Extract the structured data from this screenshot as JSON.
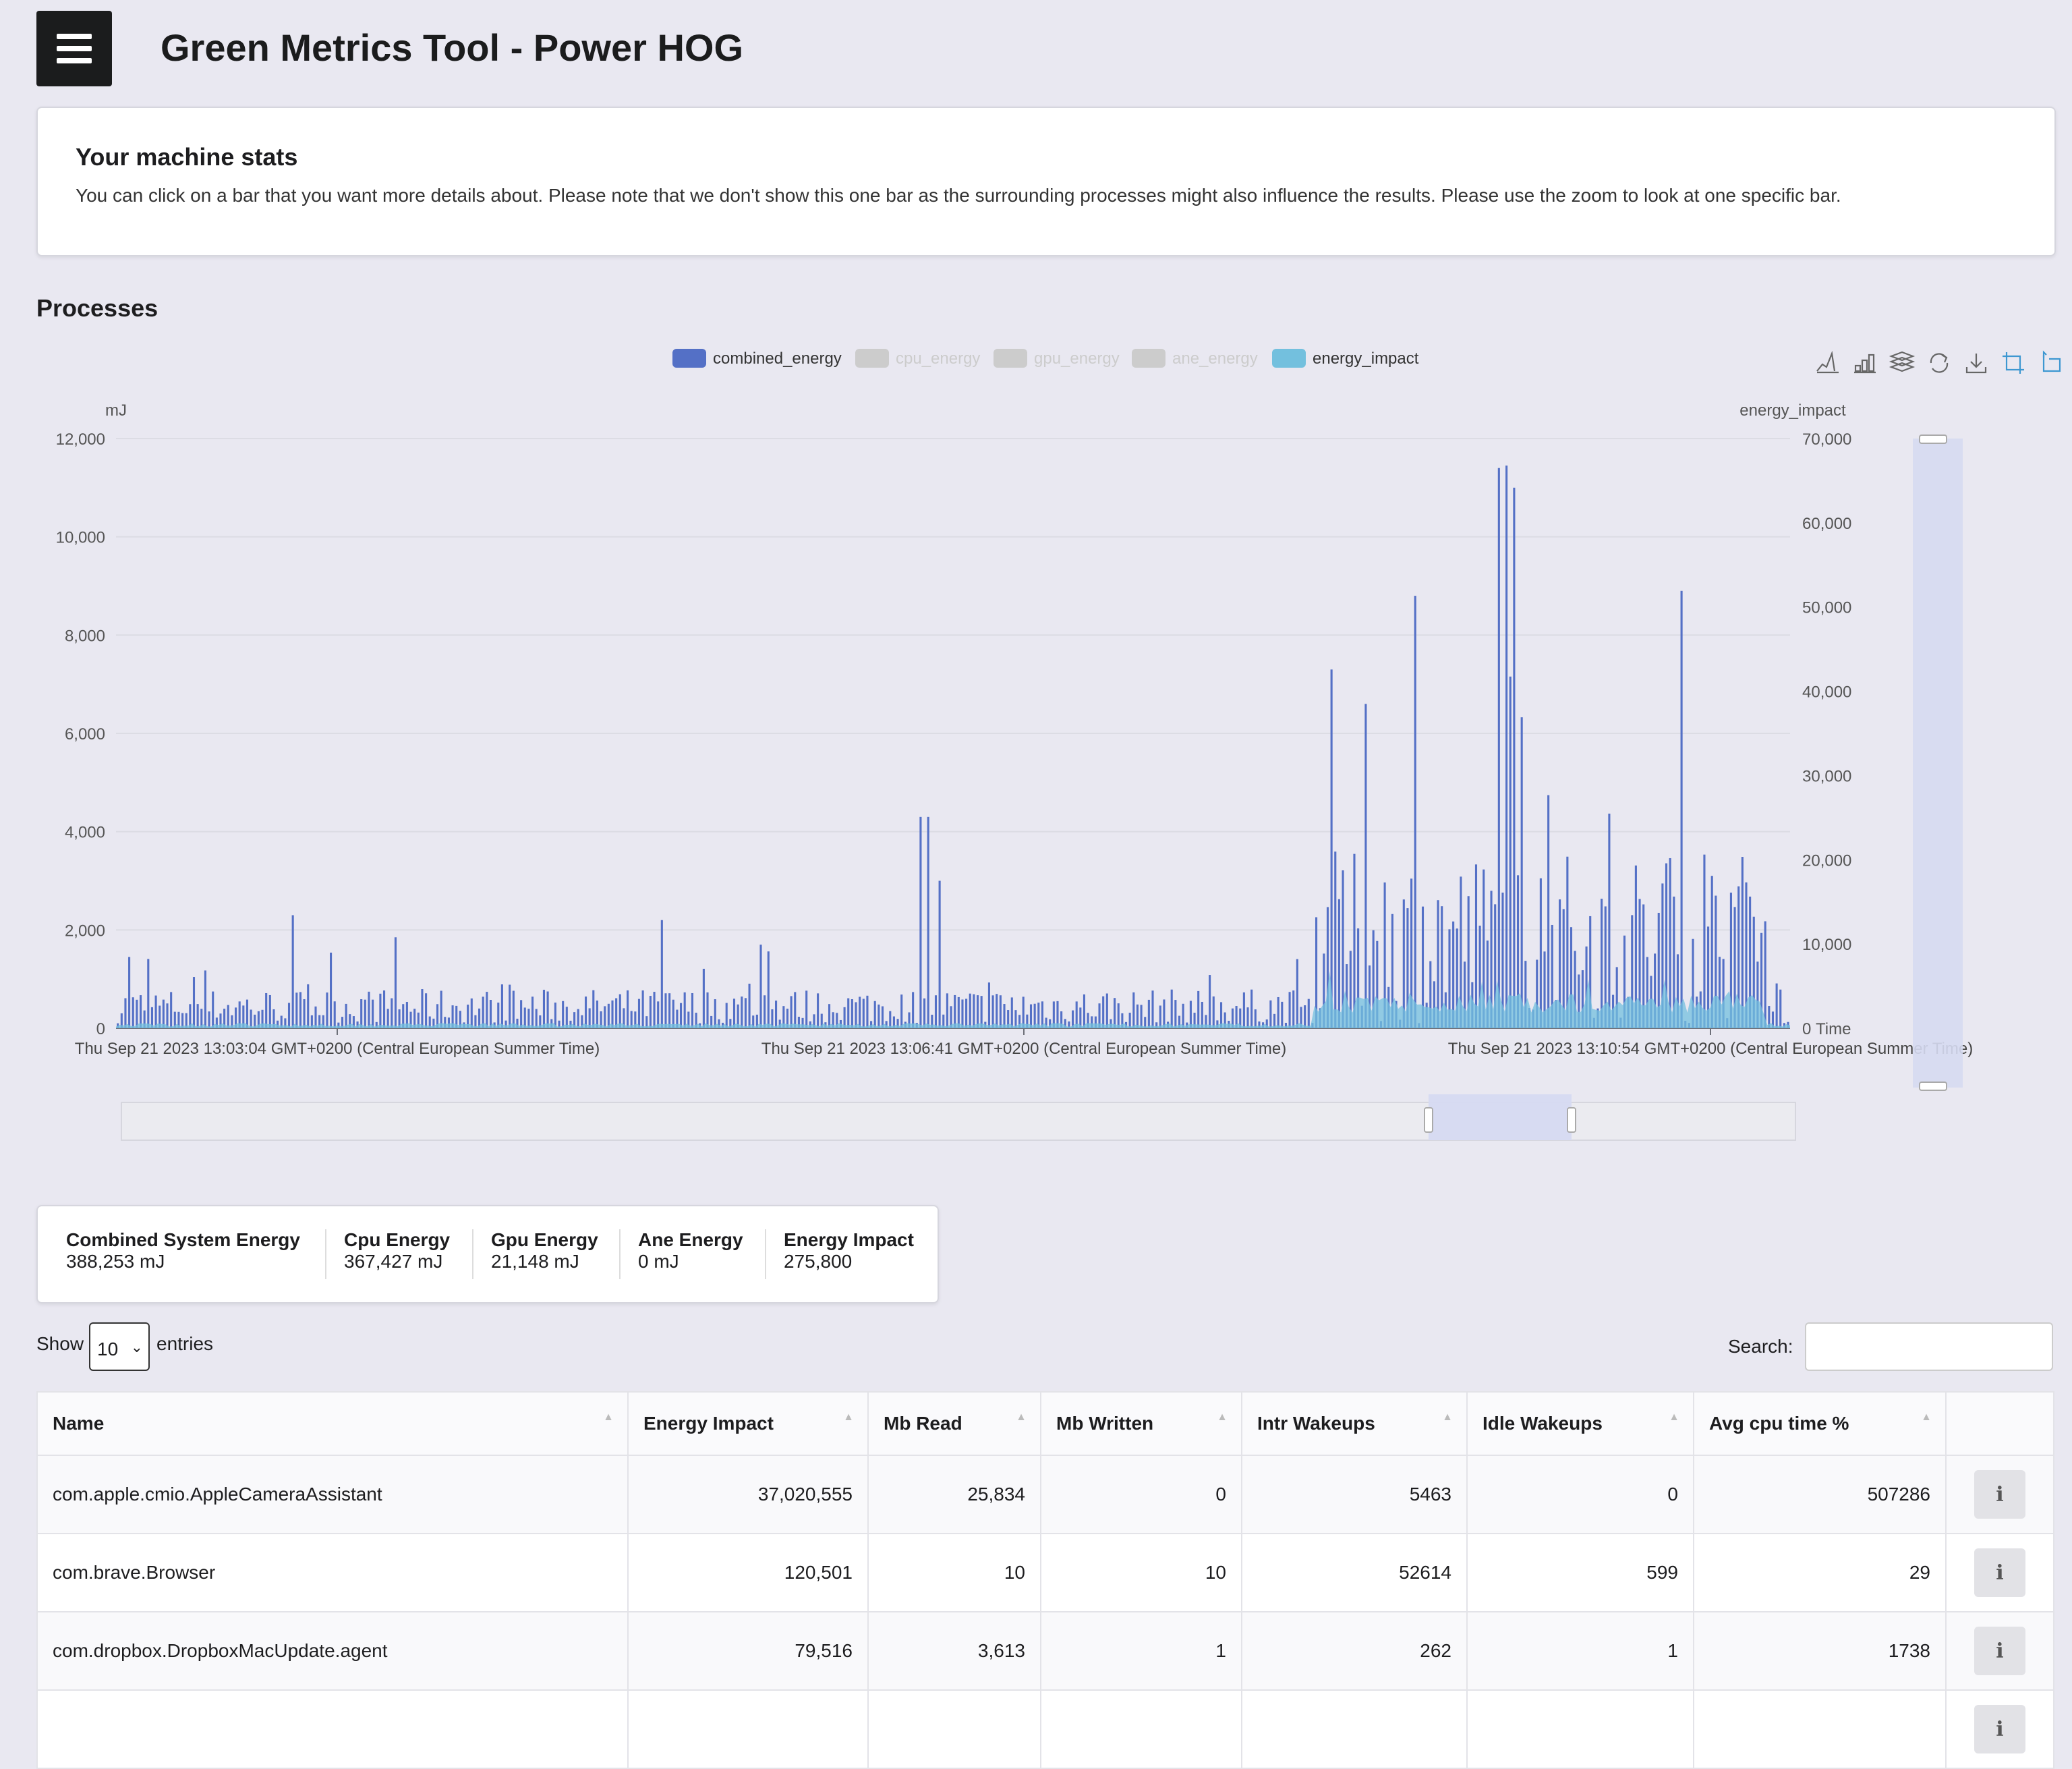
{
  "header": {
    "title": "Green Metrics Tool - Power HOG"
  },
  "stats": {
    "title": "Your machine stats",
    "text": "You can click on a bar that you want more details about. Please note that we don't show this one bar as the surrounding processes might also influence the results. Please use the zoom to look at one specific bar."
  },
  "processes": {
    "title": "Processes"
  },
  "chart_data": {
    "type": "bar",
    "legend_placement": "top-center",
    "legend": [
      {
        "name": "combined_energy",
        "active": true,
        "color": "#5470c6"
      },
      {
        "name": "cpu_energy",
        "active": false,
        "color": "#cccccc"
      },
      {
        "name": "gpu_energy",
        "active": false,
        "color": "#cccccc"
      },
      {
        "name": "ane_energy",
        "active": false,
        "color": "#cccccc"
      },
      {
        "name": "energy_impact",
        "active": true,
        "color": "#73c0de"
      }
    ],
    "y_left_label": "mJ",
    "y_left_ticks": [
      "12,000",
      "10,000",
      "8,000",
      "6,000",
      "4,000",
      "2,000",
      "0"
    ],
    "y_left_range": [
      0,
      12000
    ],
    "y_right_label": "energy_impact",
    "y_right_ticks": [
      "70,000",
      "60,000",
      "50,000",
      "40,000",
      "30,000",
      "20,000",
      "10,000",
      "0"
    ],
    "y_right_range": [
      0,
      70000
    ],
    "x_axis_name": "Time",
    "x_ticks": [
      "Thu Sep 21 2023 13:03:04 GMT+0200 (Central European Summer Time)",
      "Thu Sep 21 2023 13:06:41 GMT+0200 (Central European Summer Time)",
      "Thu Sep 21 2023 13:10:54 GMT+0200 (Central European Summer Time)"
    ],
    "grid": true,
    "toolbox": [
      "line-icon",
      "bar-icon",
      "stack-icon",
      "restore-icon",
      "download-icon",
      "zoom-icon",
      "zoom-reset-icon"
    ],
    "series": [
      {
        "name": "combined_energy",
        "peaks": [
          {
            "at": 0.006,
            "value": 1450
          },
          {
            "at": 0.105,
            "value": 2300
          },
          {
            "at": 0.165,
            "value": 1850
          },
          {
            "at": 0.325,
            "value": 2200
          },
          {
            "at": 0.385,
            "value": 1700
          },
          {
            "at": 0.48,
            "value": 4300
          },
          {
            "at": 0.485,
            "value": 4300
          },
          {
            "at": 0.49,
            "value": 3000
          },
          {
            "at": 0.725,
            "value": 7300
          },
          {
            "at": 0.745,
            "value": 6600
          },
          {
            "at": 0.775,
            "value": 8800
          },
          {
            "at": 0.825,
            "value": 11400
          },
          {
            "at": 0.83,
            "value": 11450
          },
          {
            "at": 0.835,
            "value": 11000
          },
          {
            "at": 0.935,
            "value": 8900
          }
        ]
      },
      {
        "name": "energy_impact",
        "max_shown": 8000
      }
    ]
  },
  "summary": [
    {
      "label": "Combined System Energy",
      "value": "388,253 mJ"
    },
    {
      "label": "Cpu Energy",
      "value": "367,427 mJ"
    },
    {
      "label": "Gpu Energy",
      "value": "21,148 mJ"
    },
    {
      "label": "Ane Energy",
      "value": "0 mJ"
    },
    {
      "label": "Energy Impact",
      "value": "275,800"
    }
  ],
  "controls": {
    "show": "Show",
    "page_size": "10",
    "entries": "entries",
    "search_label": "Search:"
  },
  "table": {
    "columns": [
      "Name",
      "Energy Impact",
      "Mb Read",
      "Mb Written",
      "Intr Wakeups",
      "Idle Wakeups",
      "Avg cpu time %"
    ],
    "rows": [
      [
        "com.apple.cmio.AppleCameraAssistant",
        "37,020,555",
        "25,834",
        "0",
        "5463",
        "0",
        "507286"
      ],
      [
        "com.brave.Browser",
        "120,501",
        "10",
        "10",
        "52614",
        "599",
        "29"
      ],
      [
        "com.dropbox.DropboxMacUpdate.agent",
        "79,516",
        "3,613",
        "1",
        "262",
        "1",
        "1738"
      ]
    ]
  }
}
